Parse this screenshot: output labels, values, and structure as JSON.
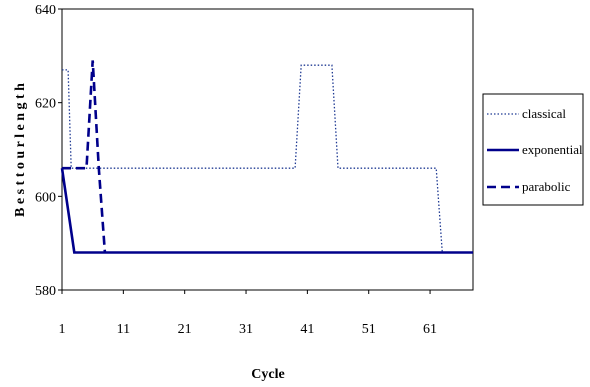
{
  "chart_data": {
    "type": "line",
    "xlabel": "Cycle",
    "ylabel": "B e s t  t o u r  l e n g t h",
    "xlim": [
      1,
      68
    ],
    "ylim": [
      580,
      640
    ],
    "x_ticks": [
      1,
      11,
      21,
      31,
      41,
      51,
      61
    ],
    "y_ticks": [
      580,
      600,
      620,
      640
    ],
    "grid": false,
    "legend_position": "right",
    "series": [
      {
        "name": "classical",
        "color": "#1f3a93",
        "style": "dotted",
        "x": [
          1,
          2,
          2.5,
          39,
          40,
          45,
          46,
          62,
          63,
          68
        ],
        "y": [
          627,
          627,
          606,
          606,
          628,
          628,
          606,
          606,
          588,
          588
        ]
      },
      {
        "name": "exponential",
        "color": "#00008b",
        "style": "solid",
        "x": [
          1,
          3,
          68
        ],
        "y": [
          606,
          588,
          588
        ]
      },
      {
        "name": "parabolic",
        "color": "#00008b",
        "style": "dashed",
        "x": [
          1,
          5,
          6,
          7,
          8
        ],
        "y": [
          606,
          606,
          629,
          606,
          588
        ]
      }
    ]
  }
}
